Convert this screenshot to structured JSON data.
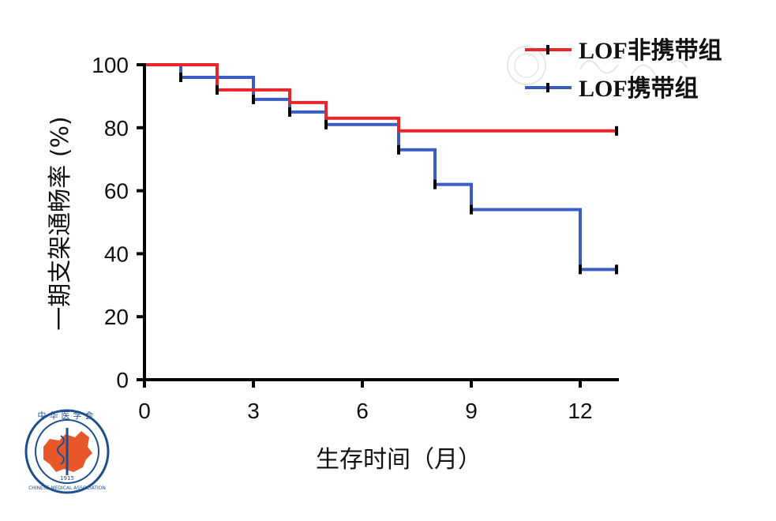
{
  "chart_data": {
    "type": "line",
    "title": "",
    "xlabel": "生存时间（月）",
    "ylabel": "一期支架通畅率 (%)",
    "xlim": [
      0,
      13
    ],
    "ylim": [
      0,
      100
    ],
    "xticks": [
      "0",
      "3",
      "6",
      "9",
      "12"
    ],
    "xtick_values": [
      0,
      3,
      6,
      9,
      12
    ],
    "yticks": [
      "0",
      "20",
      "40",
      "60",
      "80",
      "100"
    ],
    "ytick_values": [
      0,
      20,
      40,
      60,
      80,
      100
    ],
    "grid": false,
    "legend_position": "top-right",
    "series": [
      {
        "name": "LOF非携带组",
        "color": "#e8262a",
        "x": [
          0,
          2,
          2,
          4,
          4,
          5,
          5,
          7,
          7,
          13
        ],
        "y": [
          100,
          100,
          92,
          92,
          88,
          88,
          83,
          83,
          79,
          79
        ],
        "censor_x": [
          2,
          13
        ],
        "censor_y": [
          92,
          79
        ]
      },
      {
        "name": "LOF携带组",
        "color": "#3b5cc4",
        "x": [
          0,
          1,
          1,
          3,
          3,
          4,
          4,
          5,
          5,
          7,
          7,
          8,
          8,
          9,
          9,
          12,
          12,
          13
        ],
        "y": [
          100,
          100,
          96,
          96,
          89,
          89,
          85,
          85,
          81,
          81,
          73,
          73,
          62,
          62,
          54,
          54,
          35,
          35
        ],
        "censor_x": [
          1,
          3,
          4,
          5,
          7,
          8,
          9,
          12,
          13
        ],
        "censor_y": [
          96,
          89,
          85,
          81,
          73,
          62,
          54,
          35,
          35
        ]
      }
    ]
  },
  "logo": {
    "name": "chinese-medical-association-logo",
    "text_top": "中华医学会",
    "text_bottom": "CHINESE MEDICAL ASSOCIATION",
    "year": "1915",
    "colors": {
      "ring": "#1f4e8c",
      "map": "#e8572a"
    }
  }
}
